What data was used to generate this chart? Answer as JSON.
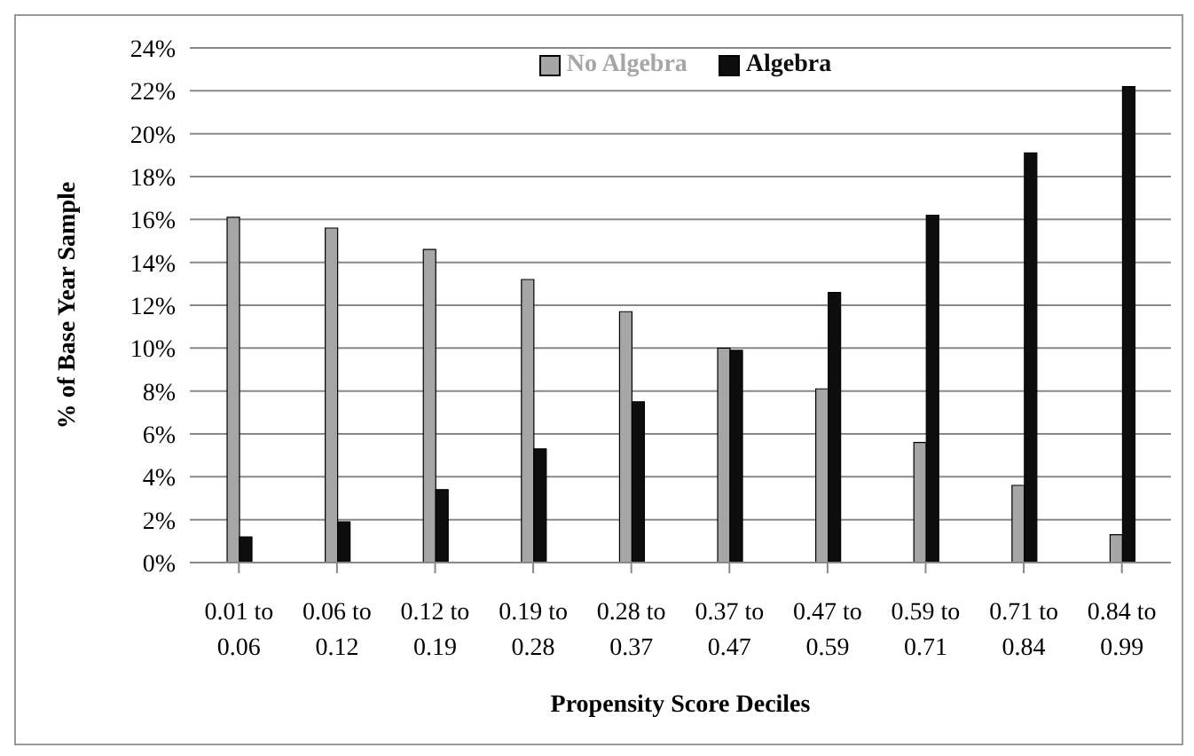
{
  "chart_data": {
    "type": "bar",
    "ylabel": "% of Base Year Sample",
    "xlabel": "Propensity Score Deciles",
    "categories": [
      "0.01 to 0.06",
      "0.06 to 0.12",
      "0.12 to 0.19",
      "0.19 to 0.28",
      "0.28 to 0.37",
      "0.37 to 0.47",
      "0.47 to 0.59",
      "0.59 to 0.71",
      "0.71 to 0.84",
      "0.84 to 0.99"
    ],
    "series": [
      {
        "name": "No Algebra",
        "color": "#a6a6a6",
        "values": [
          16.1,
          15.6,
          14.6,
          13.2,
          11.7,
          10.0,
          8.1,
          5.6,
          3.6,
          1.3
        ]
      },
      {
        "name": "Algebra",
        "color": "#0d0d0d",
        "values": [
          1.2,
          1.9,
          3.4,
          5.3,
          7.5,
          9.9,
          12.6,
          16.2,
          19.1,
          22.2
        ]
      }
    ],
    "ylim": [
      0,
      24
    ],
    "yticks": [
      {
        "value": 0,
        "label": "0%"
      },
      {
        "value": 2,
        "label": "2%"
      },
      {
        "value": 4,
        "label": "4%"
      },
      {
        "value": 6,
        "label": "6%"
      },
      {
        "value": 8,
        "label": "8%"
      },
      {
        "value": 10,
        "label": "10%"
      },
      {
        "value": 12,
        "label": "12%"
      },
      {
        "value": 14,
        "label": "14%"
      },
      {
        "value": 16,
        "label": "16%"
      },
      {
        "value": 18,
        "label": "18%"
      },
      {
        "value": 20,
        "label": "20%"
      },
      {
        "value": 22,
        "label": "22%"
      },
      {
        "value": 24,
        "label": "24%"
      }
    ],
    "grid": "y",
    "legend": "top"
  }
}
